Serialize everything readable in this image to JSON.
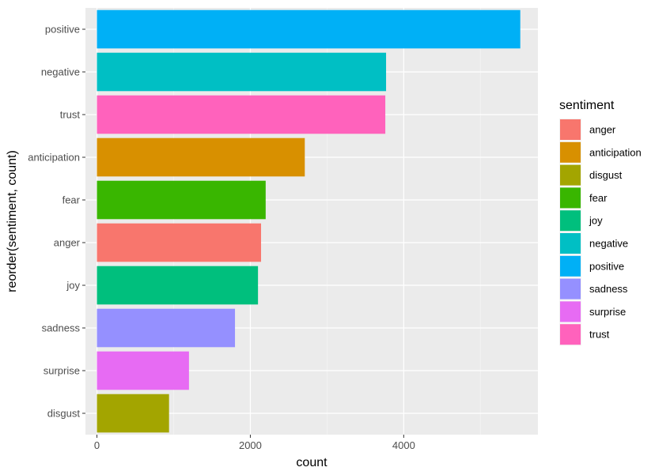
{
  "chart_data": {
    "type": "bar",
    "orientation": "horizontal",
    "title": "",
    "xlabel": "count",
    "ylabel": "reorder(sentiment, count)",
    "xlim": [
      -150,
      5750
    ],
    "x_ticks": [
      0,
      2000,
      4000
    ],
    "x_tick_labels": [
      "0",
      "2000",
      "4000"
    ],
    "grid": true,
    "legend_position": "right",
    "categories": [
      "positive",
      "negative",
      "trust",
      "anticipation",
      "fear",
      "anger",
      "joy",
      "sadness",
      "surprise",
      "disgust"
    ],
    "values": [
      5520,
      3770,
      3760,
      2710,
      2200,
      2140,
      2100,
      1800,
      1200,
      940
    ],
    "colors": {
      "anger": "#F8766D",
      "anticipation": "#D89000",
      "disgust": "#A3A500",
      "fear": "#39B600",
      "joy": "#00BF7D",
      "negative": "#00BFC4",
      "positive": "#00B0F6",
      "sadness": "#9590FF",
      "surprise": "#E76BF3",
      "trust": "#FF62BC"
    },
    "legend": {
      "title": "sentiment",
      "entries": [
        "anger",
        "anticipation",
        "disgust",
        "fear",
        "joy",
        "negative",
        "positive",
        "sadness",
        "surprise",
        "trust"
      ]
    }
  }
}
